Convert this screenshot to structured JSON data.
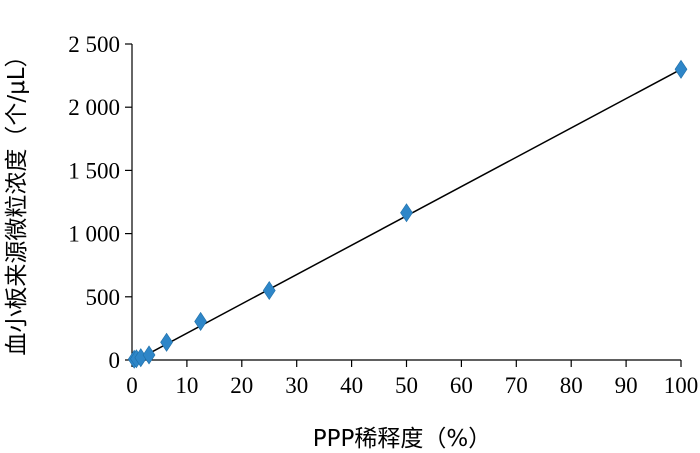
{
  "chart_data": {
    "type": "scatter",
    "xlabel": "PPP稀释度（%）",
    "ylabel": "血小板来源微粒浓度（个/μL）",
    "xlim": [
      0,
      100
    ],
    "ylim": [
      0,
      2500
    ],
    "x_ticks": [
      0,
      10,
      20,
      30,
      40,
      50,
      60,
      70,
      80,
      90,
      100
    ],
    "x_tick_labels": [
      "0",
      "10",
      "20",
      "30",
      "40",
      "50",
      "60",
      "70",
      "80",
      "90",
      "100"
    ],
    "y_ticks": [
      0,
      500,
      1000,
      1500,
      2000,
      2500
    ],
    "y_tick_labels": [
      "0",
      "500",
      "1 000",
      "1 500",
      "2 000",
      "2 500"
    ],
    "grid": false,
    "series": [
      {
        "x": [
          0.4,
          0.8,
          1.6,
          3.1,
          6.3,
          12.5,
          25,
          50,
          100
        ],
        "y": [
          6,
          10,
          18,
          40,
          140,
          305,
          550,
          1165,
          2300
        ],
        "marker": "diamond",
        "color": "#2E86C8"
      }
    ],
    "trendline": {
      "x": [
        0,
        100
      ],
      "y": [
        -20,
        2300
      ],
      "color": "#000000"
    }
  }
}
